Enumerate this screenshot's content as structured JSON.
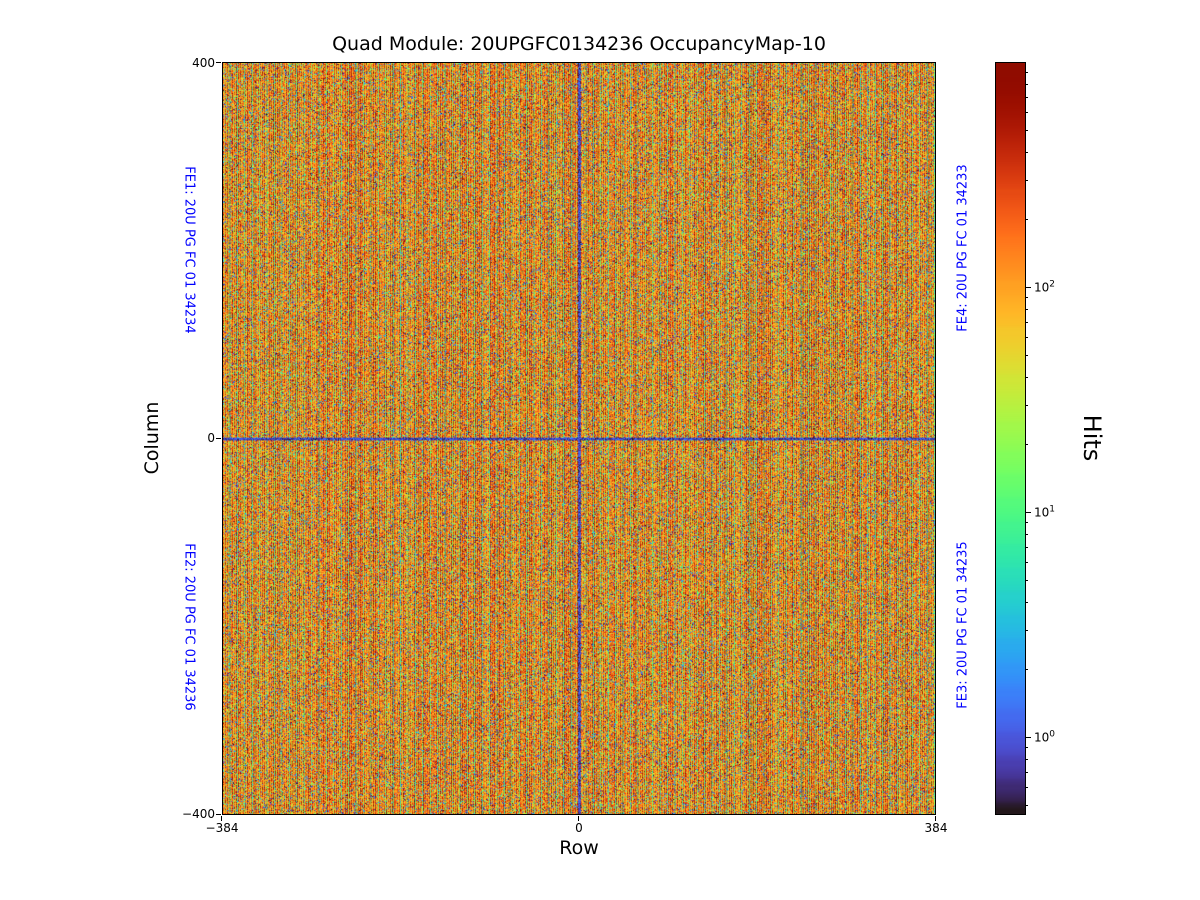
{
  "chart_data": {
    "type": "heatmap",
    "title": "Quad Module: 20UPGFC0134236 OccupancyMap-10",
    "xlabel": "Row",
    "ylabel": "Column",
    "x_range": [
      -384,
      384
    ],
    "y_range": [
      -400,
      400
    ],
    "nx": 768,
    "ny": 800,
    "xtick_labels": [
      "−384",
      "0",
      "384"
    ],
    "ytick_labels": [
      "400",
      "0",
      "−400"
    ],
    "grid": false,
    "annotation_color": "#0000ff",
    "annotations": [
      {
        "id": "FE1",
        "text": "FE1: 20U PG FC 01 34234",
        "position": "left-top"
      },
      {
        "id": "FE2",
        "text": "FE2: 20U PG FC 01 34236",
        "position": "left-bottom"
      },
      {
        "id": "FE3",
        "text": "FE3: 20U PG FC 01 34235",
        "position": "right-bottom"
      },
      {
        "id": "FE4",
        "text": "FE4: 20U PG FC 01 34233",
        "position": "right-top"
      }
    ],
    "colorbar": {
      "label": "Hits",
      "scale": "log",
      "colormap": "turbo",
      "vmin": 0.45,
      "vmax": 1000,
      "major_ticks": [
        {
          "value": 1,
          "label_base": "10",
          "label_exp": "0"
        },
        {
          "value": 10,
          "label_base": "10",
          "label_exp": "1"
        },
        {
          "value": 100,
          "label_base": "10",
          "label_exp": "2"
        }
      ]
    },
    "pattern": {
      "description": "Per-pixel random hit-count occupancy noise over a 768x800 quad-module pixel matrix; alternating bright/dim vertical column striping in the red-orange range, periodic darker core-boundary columns, sparse low-occupancy blue/dark speckles and mid-value cyan-green speckles, with dark cross lines at Row 0 and Column 0 separating the four front-end chips.",
      "seed": 20134236,
      "stripe_log10": [
        2.45,
        1.85
      ],
      "column_jitter_log10": 0.2,
      "dark_column_period": 8,
      "dark_column_delta_log10": -0.7,
      "pixel_sigma_log10": 0.28,
      "low_fraction": 0.1,
      "low_range_log10": [
        -0.35,
        0.55
      ],
      "mid_fraction": 0.03,
      "mid_range_log10": [
        0.7,
        1.6
      ],
      "cross_range_log10": [
        -0.35,
        0.2
      ]
    }
  }
}
